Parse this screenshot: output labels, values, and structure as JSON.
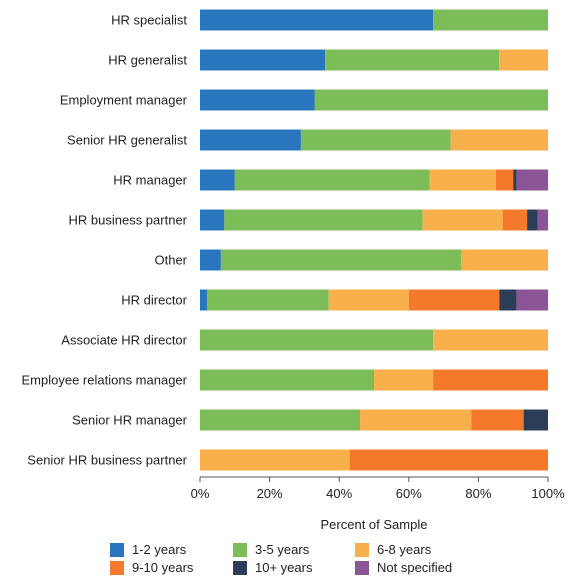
{
  "chart_data": {
    "type": "bar",
    "orientation": "horizontal",
    "stacked": true,
    "percent": true,
    "categories": [
      "HR specialist",
      "HR generalist",
      "Employment manager",
      "Senior HR generalist",
      "HR manager",
      "HR business partner",
      "Other",
      "HR director",
      "Associate HR director",
      "Employee relations manager",
      "Senior HR manager",
      "Senior HR business partner"
    ],
    "series": [
      {
        "name": "1-2 years",
        "color": "#2a76be",
        "values": [
          67,
          36,
          33,
          29,
          10,
          7,
          6,
          2,
          0,
          0,
          0,
          0
        ]
      },
      {
        "name": "3-5 years",
        "color": "#7cbd58",
        "values": [
          33,
          50,
          67,
          43,
          56,
          57,
          69,
          35,
          67,
          50,
          46,
          0
        ]
      },
      {
        "name": "6-8 years",
        "color": "#f8b04c",
        "values": [
          0,
          14,
          0,
          28,
          19,
          23,
          25,
          23,
          33,
          17,
          32,
          43
        ]
      },
      {
        "name": "9-10 years",
        "color": "#f5792a",
        "values": [
          0,
          0,
          0,
          0,
          5,
          7,
          0,
          26,
          0,
          33,
          15,
          57
        ]
      },
      {
        "name": "10+ years",
        "color": "#2b3d57",
        "values": [
          0,
          0,
          0,
          0,
          1,
          3,
          0,
          5,
          0,
          0,
          7,
          0
        ]
      },
      {
        "name": "Not specified",
        "color": "#8b5596",
        "values": [
          0,
          0,
          0,
          0,
          9,
          3,
          0,
          9,
          0,
          0,
          0,
          0
        ]
      }
    ],
    "xlabel": "Percent of Sample",
    "xlim": [
      0,
      100
    ],
    "xticks": [
      "0%",
      "20%",
      "40%",
      "60%",
      "80%",
      "100%"
    ],
    "grid": false,
    "legend_position": "bottom"
  }
}
